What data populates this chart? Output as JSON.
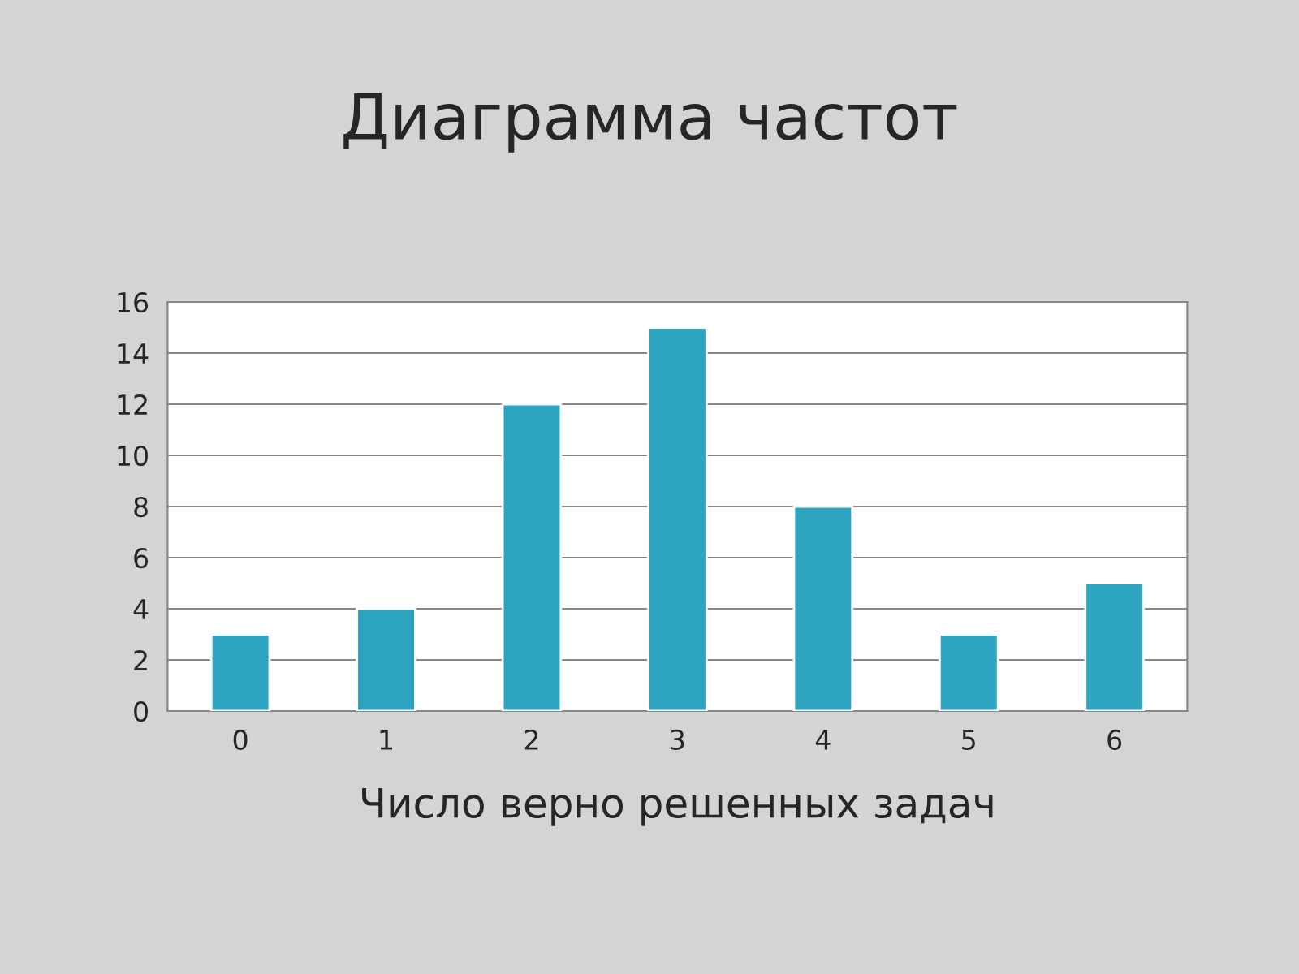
{
  "chart_data": {
    "type": "bar",
    "title": "Диаграмма частот",
    "xlabel": "Число верно решенных задач",
    "categories": [
      "0",
      "1",
      "2",
      "3",
      "4",
      "5",
      "6"
    ],
    "values": [
      3,
      4,
      12,
      15,
      8,
      3,
      5
    ],
    "color": "#2ea5c0",
    "ylim": [
      0,
      16
    ],
    "yticks": [
      0,
      2,
      4,
      6,
      8,
      10,
      12,
      14,
      16
    ],
    "grid": "y",
    "legend": false
  }
}
